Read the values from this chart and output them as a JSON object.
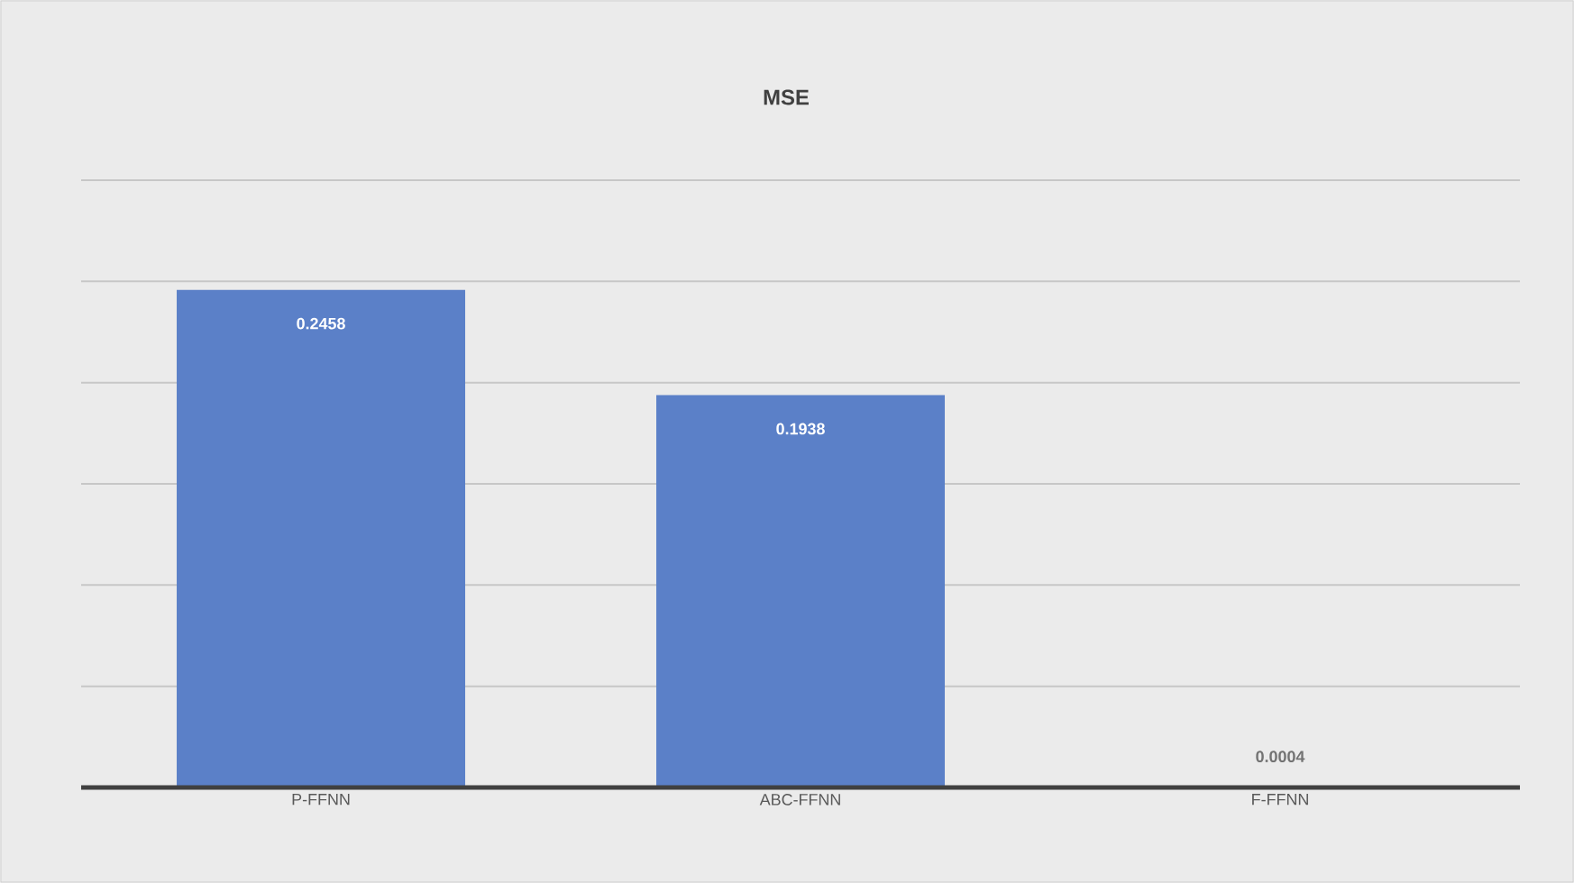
{
  "chart_data": {
    "type": "bar",
    "title": "MSE",
    "categories": [
      "P-FFNN",
      "ABC-FFNN",
      "F-FFNN"
    ],
    "values": [
      0.2458,
      0.1938,
      0.0004
    ],
    "color": "#5b80c8",
    "ylim": [
      0,
      0.3
    ],
    "yticks": [
      {
        "value": 0,
        "label": null
      },
      {
        "value": 0.05,
        "label": null
      },
      {
        "value": 0.1,
        "label": null
      },
      {
        "value": 0.15,
        "label": null
      },
      {
        "value": 0.2,
        "label": null
      },
      {
        "value": 0.25,
        "label": null
      },
      {
        "value": 0.3,
        "label": null
      }
    ],
    "tick_labels": "x",
    "grid": "y",
    "data_labels": true
  }
}
